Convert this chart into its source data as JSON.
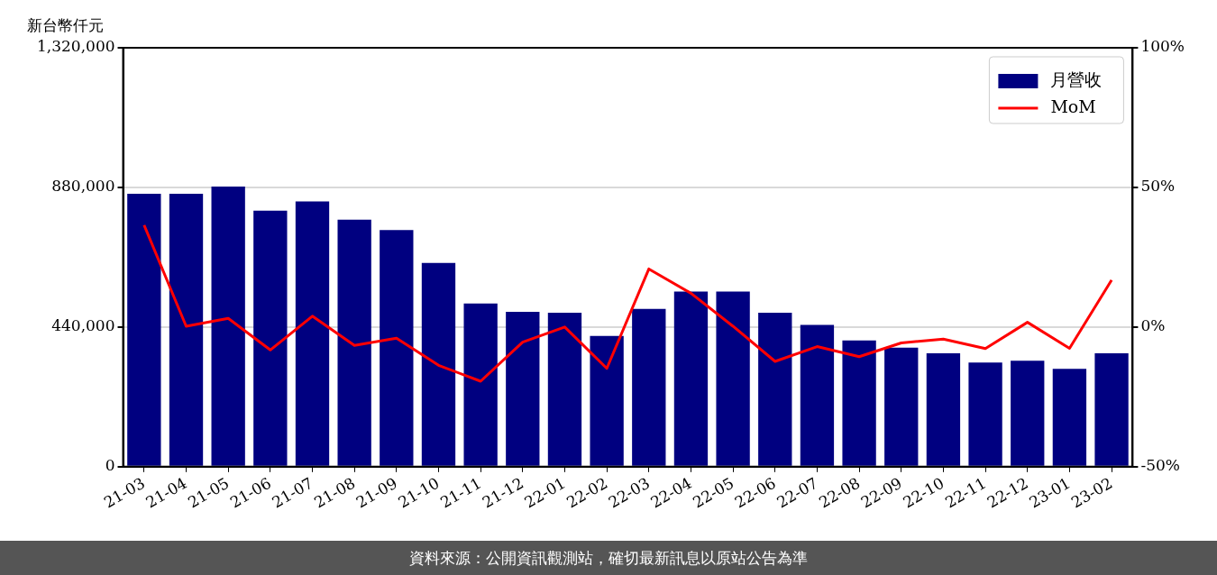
{
  "chart_data": {
    "type": "bar",
    "ylabel": "新台幣仟元",
    "categories": [
      "21-03",
      "21-04",
      "21-05",
      "21-06",
      "21-07",
      "21-08",
      "21-09",
      "21-10",
      "21-11",
      "21-12",
      "22-01",
      "22-02",
      "22-03",
      "22-04",
      "22-05",
      "22-06",
      "22-07",
      "22-08",
      "22-09",
      "22-10",
      "22-11",
      "22-12",
      "23-01",
      "23-02"
    ],
    "series": [
      {
        "name": "月營收",
        "color": "#000080",
        "values": [
          860000,
          860000,
          883000,
          807000,
          836000,
          778000,
          746000,
          642000,
          514000,
          488000,
          485000,
          412000,
          497000,
          552000,
          552000,
          485000,
          447000,
          398000,
          375000,
          357000,
          328000,
          334000,
          308000,
          357000
        ]
      },
      {
        "name": "MoM",
        "type": "line",
        "axis": "y2",
        "color": "#ff0000",
        "values": [
          36.5,
          0.3,
          3.1,
          -8.2,
          3.9,
          -6.6,
          -4.0,
          -13.7,
          -19.4,
          -5.4,
          0,
          -14.8,
          20.8,
          12.1,
          0.3,
          -12.3,
          -7.0,
          -10.6,
          -5.7,
          -4.3,
          -7.7,
          1.7,
          -7.6,
          16.8
        ]
      }
    ],
    "ylim": [
      0,
      1320000
    ],
    "yticks": [
      {
        "value": 0,
        "label": "0"
      },
      {
        "value": 440000,
        "label": "440,000"
      },
      {
        "value": 880000,
        "label": "880,000"
      },
      {
        "value": 1320000,
        "label": "1,320,000"
      }
    ],
    "y2lim": [
      -50,
      100
    ],
    "y2ticks": [
      {
        "value": -50,
        "label": "-50%"
      },
      {
        "value": 0,
        "label": "0%"
      },
      {
        "value": 50,
        "label": "50%"
      },
      {
        "value": 100,
        "label": "100%"
      }
    ],
    "grid": "y",
    "legend": "top right",
    "marker": "none",
    "line_style": "solid",
    "annotations": [
      "資料來源：公開資訊觀測站，確切最新訊息以原站公告為準"
    ]
  }
}
